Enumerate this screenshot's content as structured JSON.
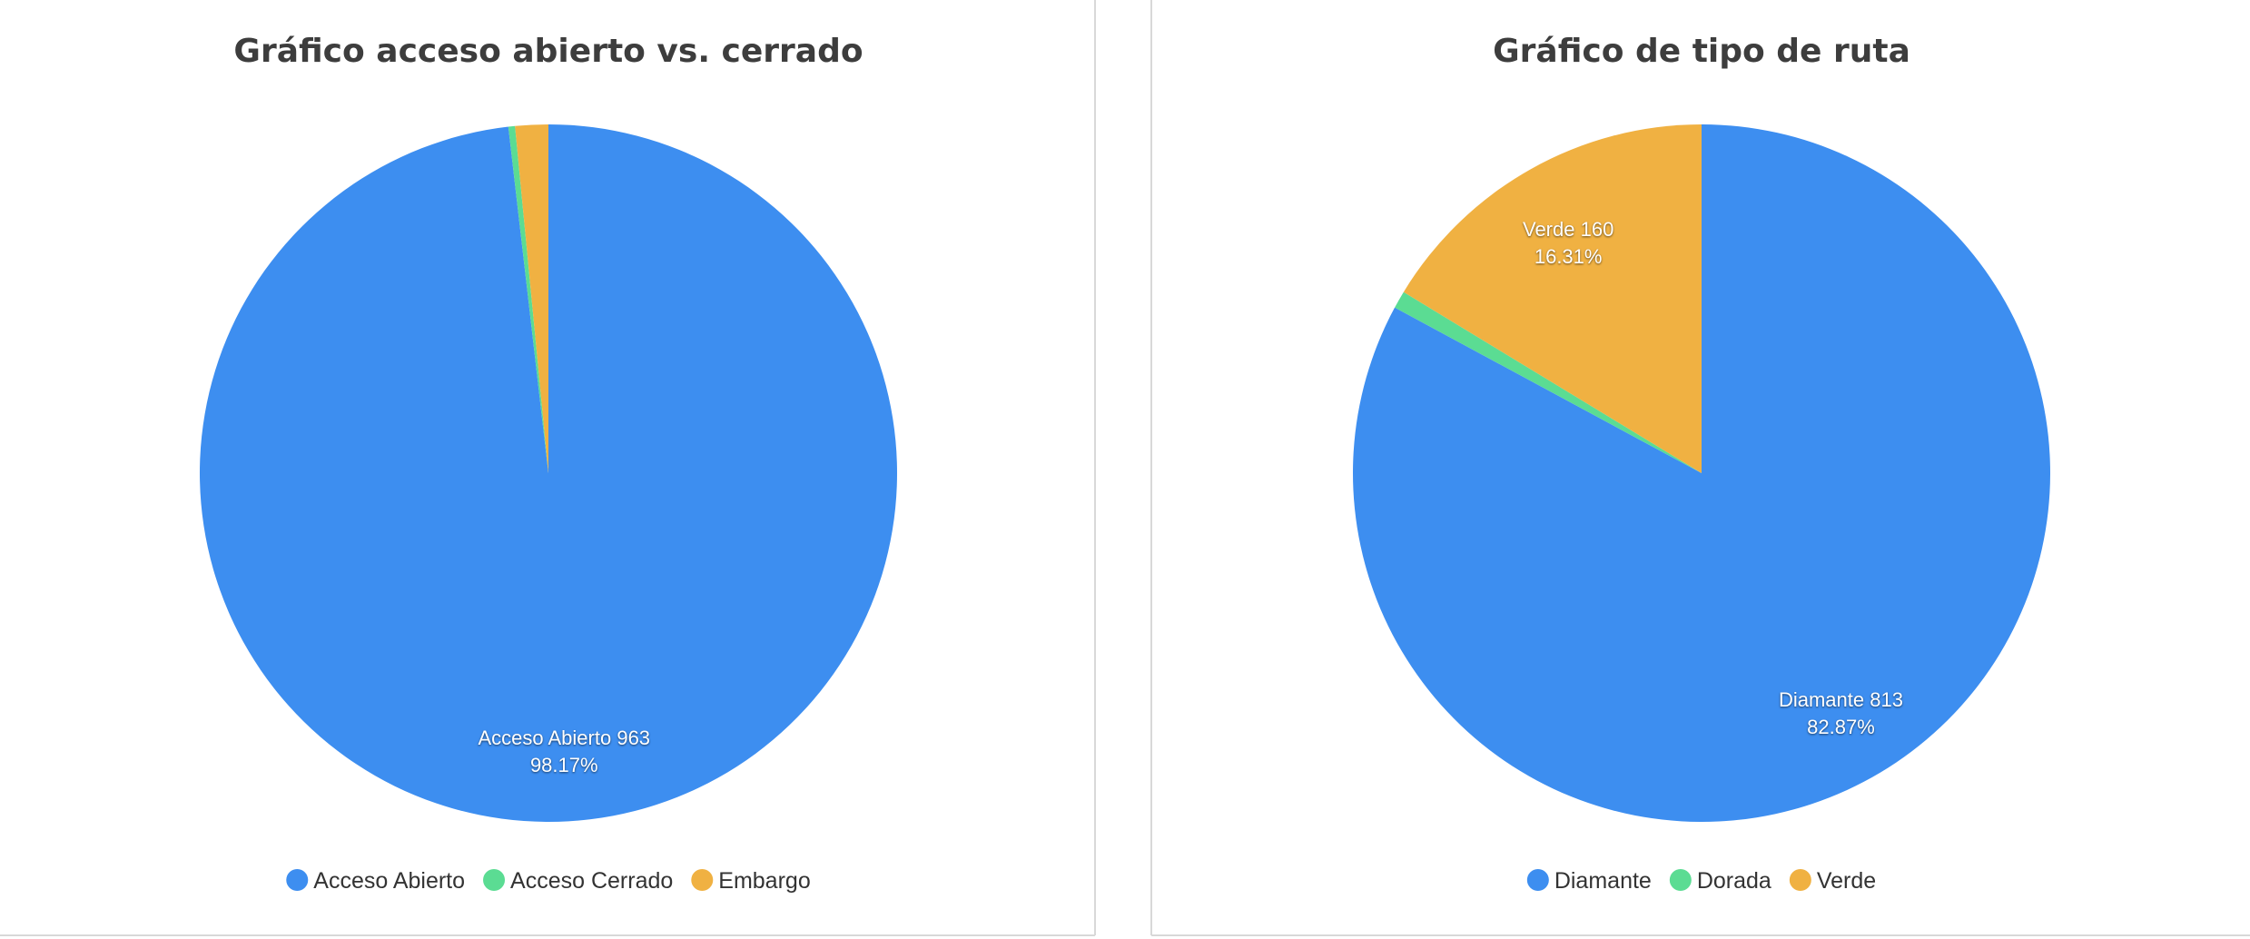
{
  "chart_data": [
    {
      "type": "pie",
      "title": "Gráfico acceso abierto vs. cerrado",
      "categories": [
        "Acceso Abierto",
        "Acceso Cerrado",
        "Embargo"
      ],
      "values": [
        963,
        3,
        15
      ],
      "percent_labels": [
        "98.17%",
        null,
        null
      ],
      "colors": [
        "#3d8ef0",
        "#5bdc93",
        "#f0b142"
      ]
    },
    {
      "type": "pie",
      "title": "Gráfico de tipo de ruta",
      "categories": [
        "Diamante",
        "Dorada",
        "Verde"
      ],
      "values": [
        813,
        8,
        160
      ],
      "percent_labels": [
        "82.87%",
        null,
        "16.31%"
      ],
      "colors": [
        "#3d8ef0",
        "#5bdc93",
        "#f0b142"
      ]
    }
  ]
}
